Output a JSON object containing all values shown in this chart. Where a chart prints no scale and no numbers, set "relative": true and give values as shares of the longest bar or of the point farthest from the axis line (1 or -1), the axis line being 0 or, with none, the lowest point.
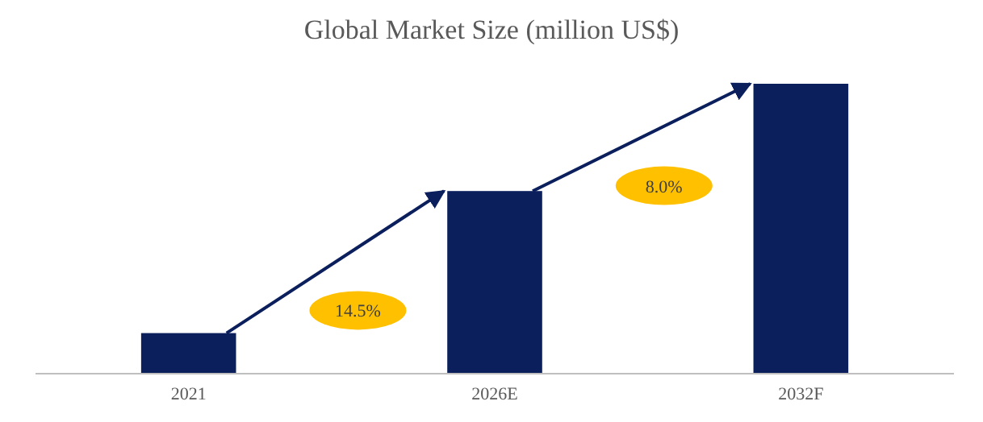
{
  "chart_data": {
    "type": "bar",
    "title": "Global Market Size (million US$)",
    "categories": [
      "2021",
      "2026E",
      "2032F"
    ],
    "values": [
      0.14,
      0.63,
      1
    ],
    "color": "#0a1f5c",
    "relative": true,
    "annotations": [
      "14.5%",
      "8.0%"
    ]
  }
}
